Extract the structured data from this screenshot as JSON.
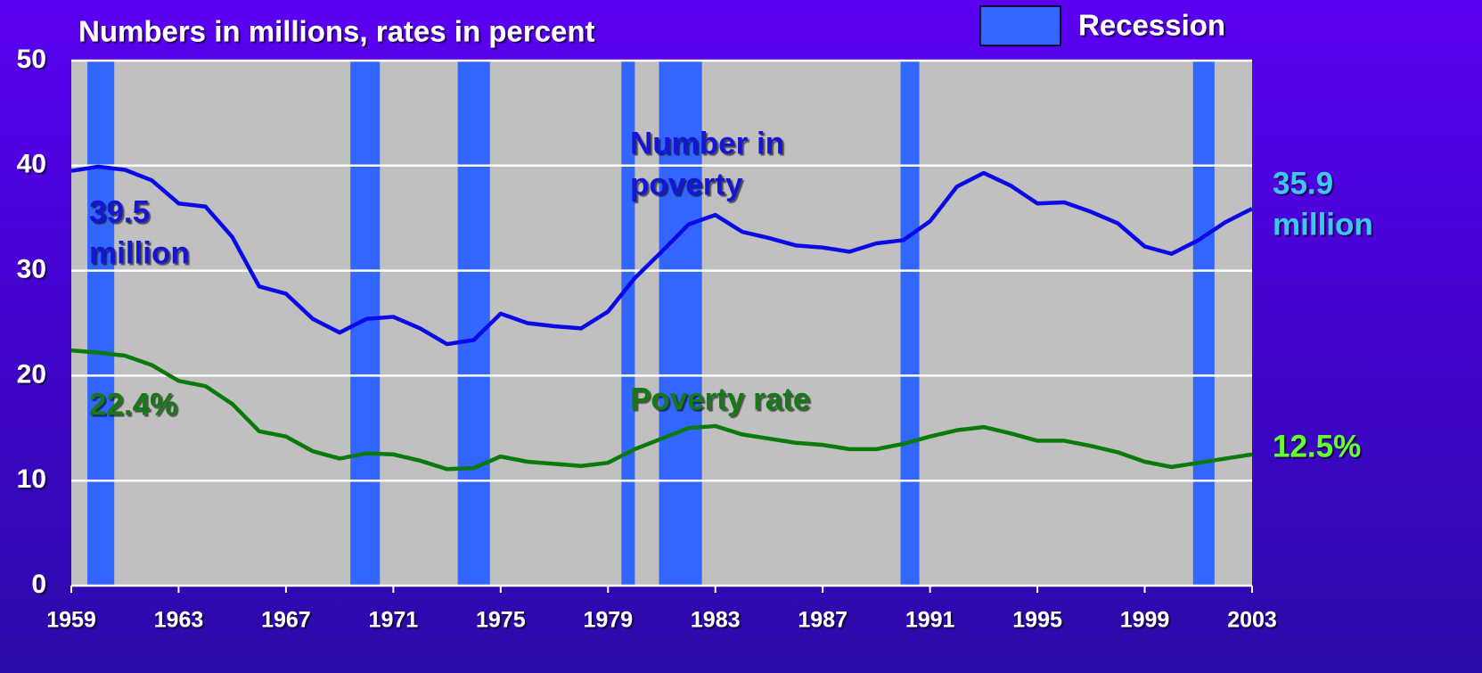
{
  "chart_data": {
    "type": "line",
    "title": "Numbers in millions, rates in percent",
    "x": [
      1959,
      1960,
      1961,
      1962,
      1963,
      1964,
      1965,
      1966,
      1967,
      1968,
      1969,
      1970,
      1971,
      1972,
      1973,
      1974,
      1975,
      1976,
      1977,
      1978,
      1979,
      1980,
      1981,
      1982,
      1983,
      1984,
      1985,
      1986,
      1987,
      1988,
      1989,
      1990,
      1991,
      1992,
      1993,
      1994,
      1995,
      1996,
      1997,
      1998,
      1999,
      2000,
      2001,
      2002,
      2003
    ],
    "series": [
      {
        "name": "Number in poverty",
        "color": "#0a0ae6",
        "values": [
          39.5,
          39.9,
          39.6,
          38.6,
          36.4,
          36.1,
          33.2,
          28.5,
          27.8,
          25.4,
          24.1,
          25.4,
          25.6,
          24.5,
          23.0,
          23.4,
          25.9,
          25.0,
          24.7,
          24.5,
          26.1,
          29.3,
          31.8,
          34.4,
          35.3,
          33.7,
          33.1,
          32.4,
          32.2,
          31.8,
          32.6,
          32.9,
          34.7,
          38.0,
          39.3,
          38.1,
          36.4,
          36.5,
          35.6,
          34.5,
          32.3,
          31.6,
          32.9,
          34.6,
          35.9
        ]
      },
      {
        "name": "Poverty rate",
        "color": "#0a7a0a",
        "values": [
          22.4,
          22.2,
          21.9,
          21.0,
          19.5,
          19.0,
          17.3,
          14.7,
          14.2,
          12.8,
          12.1,
          12.6,
          12.5,
          11.9,
          11.1,
          11.2,
          12.3,
          11.8,
          11.6,
          11.4,
          11.7,
          13.0,
          14.0,
          15.0,
          15.2,
          14.4,
          14.0,
          13.6,
          13.4,
          13.0,
          13.0,
          13.5,
          14.2,
          14.8,
          15.1,
          14.5,
          13.8,
          13.8,
          13.3,
          12.7,
          11.8,
          11.3,
          11.7,
          12.1,
          12.5
        ]
      }
    ],
    "recession_label": "Recession",
    "recession_color": "#3366ff",
    "recessions": [
      [
        1959.6,
        1960.6
      ],
      [
        1969.4,
        1970.5
      ],
      [
        1973.4,
        1974.6
      ],
      [
        1979.5,
        1980.0
      ],
      [
        1980.9,
        1982.5
      ],
      [
        1989.9,
        1990.6
      ],
      [
        2000.8,
        2001.6
      ]
    ],
    "annotations": [
      {
        "text": [
          "39.5",
          "million"
        ],
        "color": "#1414d2"
      },
      {
        "text": [
          "Number in",
          "poverty"
        ],
        "color": "#1414d2"
      },
      {
        "text": [
          "22.4%"
        ],
        "color": "#147814"
      },
      {
        "text": [
          "Poverty rate"
        ],
        "color": "#147814"
      },
      {
        "text": [
          "35.9",
          "million"
        ],
        "color": "#3fc6f2"
      },
      {
        "text": [
          "12.5%"
        ],
        "color": "#66ff33"
      }
    ],
    "xlim": [
      1959,
      2003
    ],
    "xticks": [
      1959,
      1963,
      1967,
      1971,
      1975,
      1979,
      1983,
      1987,
      1991,
      1995,
      1999,
      2003
    ],
    "ylim": [
      0,
      50
    ],
    "yticks": [
      0,
      10,
      20,
      30,
      40,
      50
    ],
    "grid": true
  }
}
